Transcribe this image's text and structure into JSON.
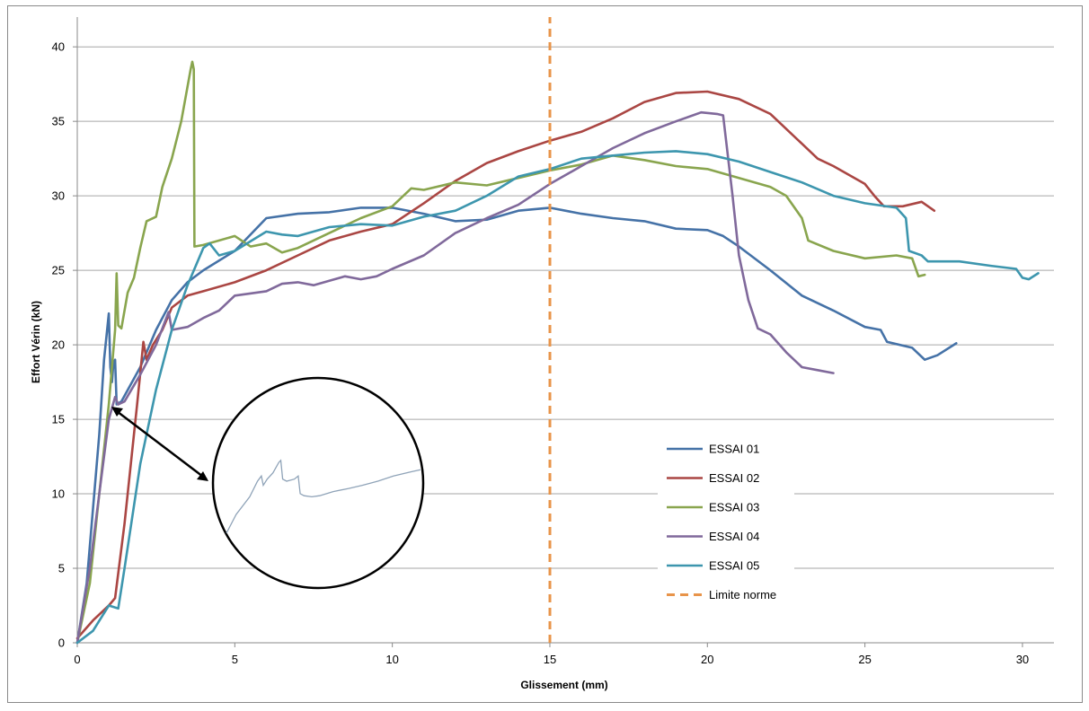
{
  "chart_data": {
    "type": "line",
    "title": "",
    "xlabel": "Glissement (mm)",
    "ylabel": "Effort Vérin (kN)",
    "xlim": [
      0,
      31
    ],
    "ylim": [
      0,
      42
    ],
    "xticks": [
      "0",
      "5",
      "10",
      "15",
      "20",
      "25",
      "30"
    ],
    "yticks": [
      "0",
      "5",
      "10",
      "15",
      "20",
      "25",
      "30",
      "35",
      "40"
    ],
    "grid": "horizontal",
    "legend_position": "lower-right",
    "series": [
      {
        "name": "ESSAI 01",
        "color": "#4572A7",
        "points": [
          [
            0,
            0
          ],
          [
            0.3,
            4
          ],
          [
            0.5,
            9
          ],
          [
            0.7,
            14
          ],
          [
            0.85,
            19
          ],
          [
            1.0,
            22.1
          ],
          [
            1.05,
            18.5
          ],
          [
            1.1,
            17.5
          ],
          [
            1.15,
            18.8
          ],
          [
            1.2,
            19.0
          ],
          [
            1.25,
            16.0
          ],
          [
            1.4,
            16.2
          ],
          [
            2.0,
            18.5
          ],
          [
            2.5,
            21
          ],
          [
            3,
            23
          ],
          [
            3.5,
            24.2
          ],
          [
            4,
            25
          ],
          [
            5,
            26.3
          ],
          [
            6,
            28.5
          ],
          [
            7,
            28.8
          ],
          [
            8,
            28.9
          ],
          [
            9,
            29.2
          ],
          [
            10,
            29.2
          ],
          [
            11,
            28.8
          ],
          [
            12,
            28.3
          ],
          [
            13,
            28.4
          ],
          [
            14,
            29.0
          ],
          [
            15,
            29.2
          ],
          [
            16,
            28.8
          ],
          [
            17,
            28.5
          ],
          [
            18,
            28.3
          ],
          [
            19,
            27.8
          ],
          [
            20,
            27.7
          ],
          [
            20.5,
            27.3
          ],
          [
            21,
            26.6
          ],
          [
            22,
            25.0
          ],
          [
            23,
            23.3
          ],
          [
            24,
            22.3
          ],
          [
            25,
            21.2
          ],
          [
            25.5,
            21.0
          ],
          [
            25.7,
            20.2
          ],
          [
            26.5,
            19.8
          ],
          [
            26.9,
            19.0
          ],
          [
            27.3,
            19.3
          ],
          [
            27.9,
            20.1
          ]
        ]
      },
      {
        "name": "ESSAI 02",
        "color": "#AA4643",
        "points": [
          [
            0,
            0.3
          ],
          [
            0.5,
            1.5
          ],
          [
            1.0,
            2.5
          ],
          [
            1.2,
            3.0
          ],
          [
            1.5,
            8
          ],
          [
            1.7,
            12
          ],
          [
            1.9,
            16
          ],
          [
            2.1,
            20.2
          ],
          [
            2.2,
            19
          ],
          [
            2.4,
            20
          ],
          [
            2.7,
            21
          ],
          [
            3,
            22.5
          ],
          [
            3.5,
            23.3
          ],
          [
            4,
            23.6
          ],
          [
            5,
            24.2
          ],
          [
            6,
            25
          ],
          [
            7,
            26
          ],
          [
            8,
            27
          ],
          [
            9,
            27.6
          ],
          [
            10,
            28.1
          ],
          [
            11,
            29.5
          ],
          [
            12,
            31.0
          ],
          [
            13,
            32.2
          ],
          [
            14,
            33.0
          ],
          [
            15,
            33.7
          ],
          [
            16,
            34.3
          ],
          [
            17,
            35.2
          ],
          [
            18,
            36.3
          ],
          [
            19,
            36.9
          ],
          [
            20,
            37.0
          ],
          [
            21,
            36.5
          ],
          [
            22,
            35.5
          ],
          [
            23,
            33.5
          ],
          [
            23.5,
            32.5
          ],
          [
            24,
            32.0
          ],
          [
            25,
            30.8
          ],
          [
            25.3,
            30.0
          ],
          [
            25.6,
            29.3
          ],
          [
            26.2,
            29.3
          ],
          [
            26.8,
            29.6
          ],
          [
            27.2,
            29.0
          ]
        ]
      },
      {
        "name": "ESSAI 03",
        "color": "#89A54E",
        "points": [
          [
            0,
            0
          ],
          [
            0.4,
            4
          ],
          [
            0.7,
            10
          ],
          [
            1.0,
            16
          ],
          [
            1.2,
            21
          ],
          [
            1.25,
            24.8
          ],
          [
            1.3,
            21.3
          ],
          [
            1.4,
            21.1
          ],
          [
            1.6,
            23.5
          ],
          [
            1.8,
            24.5
          ],
          [
            2.0,
            26.5
          ],
          [
            2.2,
            28.3
          ],
          [
            2.5,
            28.6
          ],
          [
            2.7,
            30.6
          ],
          [
            3.0,
            32.5
          ],
          [
            3.3,
            35.0
          ],
          [
            3.6,
            38.5
          ],
          [
            3.65,
            39.0
          ],
          [
            3.7,
            38.5
          ],
          [
            3.72,
            26.6
          ],
          [
            4,
            26.7
          ],
          [
            5,
            27.3
          ],
          [
            5.5,
            26.6
          ],
          [
            6,
            26.8
          ],
          [
            6.5,
            26.2
          ],
          [
            7,
            26.5
          ],
          [
            8,
            27.5
          ],
          [
            9,
            28.5
          ],
          [
            10,
            29.3
          ],
          [
            10.6,
            30.5
          ],
          [
            11,
            30.4
          ],
          [
            12,
            30.9
          ],
          [
            13,
            30.7
          ],
          [
            14,
            31.2
          ],
          [
            15,
            31.7
          ],
          [
            16,
            32.1
          ],
          [
            17,
            32.7
          ],
          [
            18,
            32.4
          ],
          [
            19,
            32.0
          ],
          [
            20,
            31.8
          ],
          [
            21,
            31.2
          ],
          [
            22,
            30.6
          ],
          [
            22.5,
            30.0
          ],
          [
            23,
            28.5
          ],
          [
            23.2,
            27.0
          ],
          [
            24,
            26.3
          ],
          [
            25,
            25.8
          ],
          [
            26,
            26.0
          ],
          [
            26.5,
            25.8
          ],
          [
            26.7,
            24.6
          ],
          [
            26.9,
            24.7
          ]
        ]
      },
      {
        "name": "ESSAI 04",
        "color": "#80699B",
        "points": [
          [
            0,
            0
          ],
          [
            0.4,
            5
          ],
          [
            0.7,
            10
          ],
          [
            1.0,
            15
          ],
          [
            1.2,
            16.5
          ],
          [
            1.3,
            16.0
          ],
          [
            1.5,
            16.2
          ],
          [
            2,
            18
          ],
          [
            2.5,
            20
          ],
          [
            2.9,
            22.2
          ],
          [
            3.0,
            21.0
          ],
          [
            3.5,
            21.2
          ],
          [
            4,
            21.8
          ],
          [
            4.5,
            22.3
          ],
          [
            5,
            23.3
          ],
          [
            6,
            23.6
          ],
          [
            6.5,
            24.1
          ],
          [
            7,
            24.2
          ],
          [
            7.5,
            24.0
          ],
          [
            8,
            24.3
          ],
          [
            8.5,
            24.6
          ],
          [
            9,
            24.4
          ],
          [
            9.5,
            24.6
          ],
          [
            10,
            25.1
          ],
          [
            11,
            26.0
          ],
          [
            12,
            27.5
          ],
          [
            13,
            28.5
          ],
          [
            14,
            29.4
          ],
          [
            15,
            30.8
          ],
          [
            16,
            32.0
          ],
          [
            17,
            33.2
          ],
          [
            18,
            34.2
          ],
          [
            19,
            35.0
          ],
          [
            19.8,
            35.6
          ],
          [
            20.3,
            35.5
          ],
          [
            20.5,
            35.4
          ],
          [
            20.8,
            30
          ],
          [
            21,
            26
          ],
          [
            21.3,
            23
          ],
          [
            21.6,
            21.1
          ],
          [
            22,
            20.7
          ],
          [
            22.5,
            19.5
          ],
          [
            23,
            18.5
          ],
          [
            23.5,
            18.3
          ],
          [
            24,
            18.1
          ]
        ]
      },
      {
        "name": "ESSAI 05",
        "color": "#3D96AE",
        "points": [
          [
            0,
            0
          ],
          [
            0.5,
            0.8
          ],
          [
            1.0,
            2.5
          ],
          [
            1.3,
            2.3
          ],
          [
            1.5,
            5
          ],
          [
            2,
            12
          ],
          [
            2.5,
            17
          ],
          [
            3,
            21
          ],
          [
            3.5,
            24
          ],
          [
            4,
            26.5
          ],
          [
            4.2,
            26.8
          ],
          [
            4.5,
            26.0
          ],
          [
            5,
            26.3
          ],
          [
            6,
            27.6
          ],
          [
            6.5,
            27.4
          ],
          [
            7,
            27.3
          ],
          [
            8,
            27.9
          ],
          [
            9,
            28.1
          ],
          [
            10,
            28.0
          ],
          [
            11,
            28.6
          ],
          [
            12,
            29.0
          ],
          [
            13,
            30.0
          ],
          [
            14,
            31.3
          ],
          [
            15,
            31.8
          ],
          [
            16,
            32.5
          ],
          [
            17,
            32.7
          ],
          [
            18,
            32.9
          ],
          [
            19,
            33.0
          ],
          [
            20,
            32.8
          ],
          [
            21,
            32.3
          ],
          [
            22,
            31.6
          ],
          [
            23,
            30.9
          ],
          [
            24,
            30.0
          ],
          [
            25,
            29.5
          ],
          [
            26,
            29.2
          ],
          [
            26.3,
            28.5
          ],
          [
            26.4,
            26.3
          ],
          [
            26.8,
            26.0
          ],
          [
            27,
            25.6
          ],
          [
            28,
            25.6
          ],
          [
            29,
            25.3
          ],
          [
            29.8,
            25.1
          ],
          [
            30,
            24.5
          ],
          [
            30.2,
            24.4
          ],
          [
            30.5,
            24.8
          ]
        ]
      },
      {
        "name": "Limite norme",
        "color": "#E8944A",
        "dashed": true,
        "points": [
          [
            15,
            0
          ],
          [
            15,
            42
          ]
        ]
      }
    ],
    "inset": {
      "description_free": true,
      "color": "#8FA3B8",
      "points": [
        [
          0,
          0.0
        ],
        [
          0.05,
          0.18
        ],
        [
          0.12,
          0.35
        ],
        [
          0.16,
          0.5
        ],
        [
          0.18,
          0.55
        ],
        [
          0.19,
          0.46
        ],
        [
          0.21,
          0.52
        ],
        [
          0.24,
          0.58
        ],
        [
          0.27,
          0.68
        ],
        [
          0.28,
          0.7
        ],
        [
          0.29,
          0.52
        ],
        [
          0.31,
          0.5
        ],
        [
          0.35,
          0.52
        ],
        [
          0.37,
          0.55
        ],
        [
          0.38,
          0.38
        ],
        [
          0.4,
          0.36
        ],
        [
          0.44,
          0.35
        ],
        [
          0.48,
          0.36
        ],
        [
          0.55,
          0.4
        ],
        [
          0.63,
          0.43
        ],
        [
          0.7,
          0.46
        ],
        [
          0.78,
          0.5
        ],
        [
          0.86,
          0.55
        ],
        [
          0.95,
          0.59
        ],
        [
          1.0,
          0.61
        ]
      ]
    }
  }
}
